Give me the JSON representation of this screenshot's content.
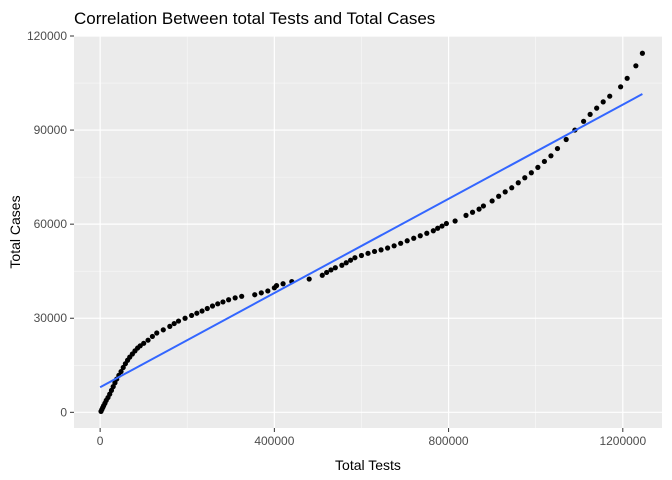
{
  "chart_data": {
    "type": "scatter",
    "title": "Correlation Between total Tests and Total Cases",
    "xlabel": "Total Tests",
    "ylabel": "Total Cases",
    "xlim": [
      -60000,
      1290000
    ],
    "ylim": [
      -5000,
      120000
    ],
    "x_ticks": [
      0,
      400000,
      800000,
      1200000
    ],
    "y_ticks": [
      0,
      30000,
      60000,
      90000,
      120000
    ],
    "x_tick_labels": [
      "0",
      "400000",
      "800000",
      "1200000"
    ],
    "y_tick_labels": [
      "0",
      "30000",
      "60000",
      "90000",
      "120000"
    ],
    "grid": true,
    "colors": {
      "panel_background": "#ebebeb",
      "grid_major": "#ffffff",
      "points": "#000000",
      "trend_line": "#3366ff"
    },
    "points": [
      [
        2000,
        300
      ],
      [
        4000,
        900
      ],
      [
        6000,
        1500
      ],
      [
        8000,
        2100
      ],
      [
        11000,
        2900
      ],
      [
        14000,
        3800
      ],
      [
        18000,
        4700
      ],
      [
        22000,
        5800
      ],
      [
        26000,
        7000
      ],
      [
        30000,
        8200
      ],
      [
        34000,
        9400
      ],
      [
        38000,
        10600
      ],
      [
        43000,
        11800
      ],
      [
        48000,
        13000
      ],
      [
        53000,
        14300
      ],
      [
        58000,
        15500
      ],
      [
        63000,
        16600
      ],
      [
        68000,
        17600
      ],
      [
        74000,
        18600
      ],
      [
        80000,
        19600
      ],
      [
        86000,
        20500
      ],
      [
        92000,
        21200
      ],
      [
        100000,
        22000
      ],
      [
        110000,
        23000
      ],
      [
        120000,
        24200
      ],
      [
        130000,
        25300
      ],
      [
        145000,
        26300
      ],
      [
        160000,
        27400
      ],
      [
        170000,
        28300
      ],
      [
        180000,
        29100
      ],
      [
        195000,
        30000
      ],
      [
        210000,
        30900
      ],
      [
        222000,
        31600
      ],
      [
        234000,
        32300
      ],
      [
        246000,
        33100
      ],
      [
        258000,
        33900
      ],
      [
        270000,
        34600
      ],
      [
        282000,
        35200
      ],
      [
        295000,
        35900
      ],
      [
        310000,
        36500
      ],
      [
        325000,
        37000
      ],
      [
        355000,
        37500
      ],
      [
        370000,
        38100
      ],
      [
        385000,
        38700
      ],
      [
        400000,
        39700
      ],
      [
        405000,
        40400
      ],
      [
        420000,
        41000
      ],
      [
        440000,
        41700
      ],
      [
        480000,
        42500
      ],
      [
        510000,
        43700
      ],
      [
        520000,
        44600
      ],
      [
        530000,
        45400
      ],
      [
        540000,
        46100
      ],
      [
        555000,
        46900
      ],
      [
        565000,
        47700
      ],
      [
        575000,
        48500
      ],
      [
        585000,
        49300
      ],
      [
        600000,
        50000
      ],
      [
        615000,
        50700
      ],
      [
        630000,
        51300
      ],
      [
        645000,
        51800
      ],
      [
        660000,
        52400
      ],
      [
        675000,
        53100
      ],
      [
        690000,
        53900
      ],
      [
        705000,
        54700
      ],
      [
        720000,
        55500
      ],
      [
        735000,
        56300
      ],
      [
        750000,
        57100
      ],
      [
        765000,
        57900
      ],
      [
        775000,
        58700
      ],
      [
        785000,
        59400
      ],
      [
        795000,
        60200
      ],
      [
        815000,
        61000
      ],
      [
        840000,
        62800
      ],
      [
        855000,
        63800
      ],
      [
        870000,
        64800
      ],
      [
        880000,
        65800
      ],
      [
        900000,
        67400
      ],
      [
        915000,
        68900
      ],
      [
        930000,
        70300
      ],
      [
        945000,
        71600
      ],
      [
        960000,
        73200
      ],
      [
        975000,
        74800
      ],
      [
        990000,
        76400
      ],
      [
        1005000,
        78100
      ],
      [
        1020000,
        80000
      ],
      [
        1035000,
        81800
      ],
      [
        1050000,
        84100
      ],
      [
        1070000,
        87000
      ],
      [
        1090000,
        90000
      ],
      [
        1110000,
        92800
      ],
      [
        1125000,
        95000
      ],
      [
        1140000,
        97000
      ],
      [
        1155000,
        99000
      ],
      [
        1170000,
        100800
      ],
      [
        1195000,
        103800
      ],
      [
        1210000,
        106500
      ],
      [
        1230000,
        110500
      ],
      [
        1245000,
        114500
      ]
    ],
    "trend_line": [
      [
        0,
        8000
      ],
      [
        1245000,
        101500
      ]
    ]
  }
}
